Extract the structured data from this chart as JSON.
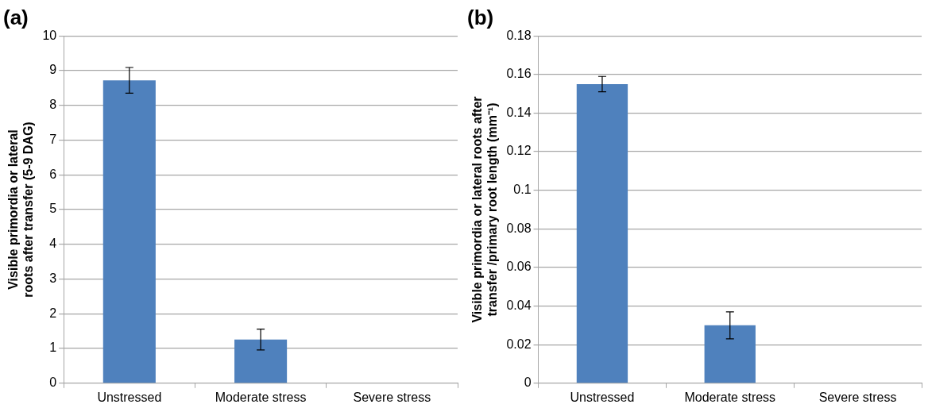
{
  "chart_data": [
    {
      "type": "bar",
      "title": "(a)",
      "ylabel": "Visible primordia or lateral roots after transfer (5-9 DAG)",
      "categories": [
        "Unstressed",
        "Moderate stress",
        "Severe stress"
      ],
      "values": [
        8.72,
        1.26,
        0
      ],
      "errors": [
        0.37,
        0.3,
        null
      ],
      "color": "#4f81bd",
      "ylim": [
        0,
        10
      ],
      "yticks": [
        0,
        1,
        2,
        3,
        4,
        5,
        6,
        7,
        8,
        9,
        10
      ],
      "grid": "y"
    },
    {
      "type": "bar",
      "title": "(b)",
      "ylabel": "Visible primordia or lateral roots after transfer /primary root length (mm⁻¹)",
      "categories": [
        "Unstressed",
        "Moderate stress",
        "Severe stress"
      ],
      "values": [
        0.155,
        0.03,
        0
      ],
      "errors": [
        0.004,
        0.007,
        null
      ],
      "color": "#4f81bd",
      "ylim": [
        0,
        0.18
      ],
      "yticks": [
        0,
        0.02,
        0.04,
        0.06,
        0.08,
        0.1,
        0.12,
        0.14,
        0.16,
        0.18
      ],
      "grid": "y"
    }
  ]
}
